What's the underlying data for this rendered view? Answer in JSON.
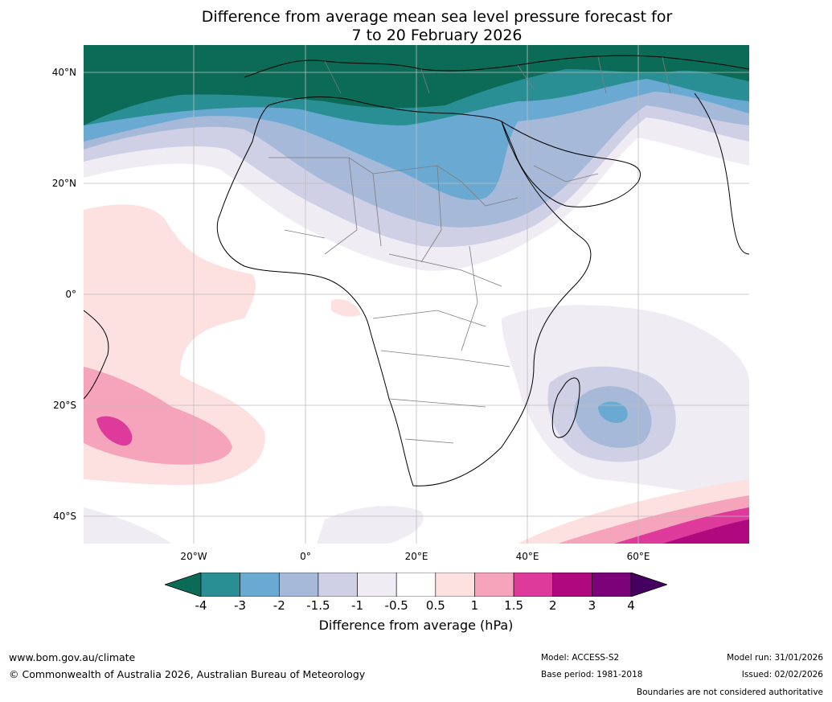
{
  "title_line1": "Difference from average mean sea level pressure forecast for",
  "title_line2": "7 to 20 February 2026",
  "lat_labels": [
    "40°N",
    "20°N",
    "0°",
    "20°S",
    "40°S"
  ],
  "lon_labels": [
    "20°W",
    "0°",
    "20°E",
    "40°E",
    "60°E"
  ],
  "colorbar": {
    "ticks": [
      "-4",
      "-3",
      "-2",
      "-1.5",
      "-1",
      "-0.5",
      "0.5",
      "1",
      "1.5",
      "2",
      "3",
      "4"
    ],
    "colors": [
      "#2a8f95",
      "#6aaad2",
      "#a7b9d8",
      "#cfd0e5",
      "#efecf4",
      "#ffffff",
      "#fde0e0",
      "#f6a3bc",
      "#dd3a9c",
      "#b0087f",
      "#7b0278"
    ],
    "low_extend_color": "#0b6b57",
    "high_extend_color": "#45005f",
    "label": "Difference from average (hPa)"
  },
  "footer": {
    "website": "www.bom.gov.au/climate",
    "copyright": "© Commonwealth of Australia 2026, Australian Bureau of Meteorology",
    "model": "Model: ACCESS-S2",
    "base_period": "Base period: 1981-2018",
    "model_run": "Model run: 31/01/2026",
    "issued": "Issued: 02/02/2026",
    "boundaries": "Boundaries are not considered authoritative"
  }
}
